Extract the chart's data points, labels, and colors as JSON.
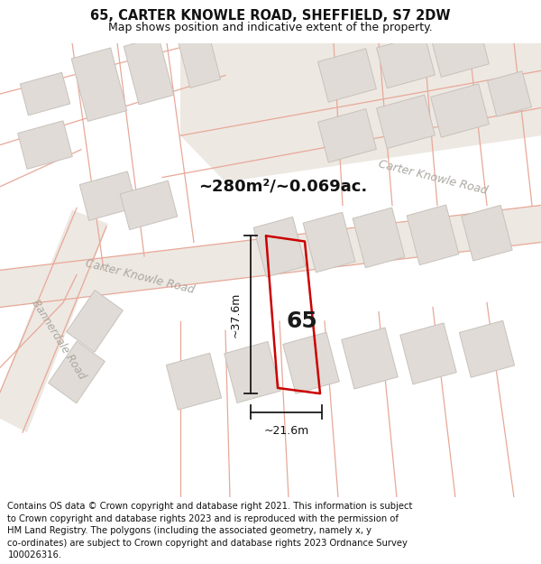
{
  "title": "65, CARTER KNOWLE ROAD, SHEFFIELD, S7 2DW",
  "subtitle": "Map shows position and indicative extent of the property.",
  "area_label": "~280m²/~0.069ac.",
  "width_label": "~21.6m",
  "height_label": "~37.6m",
  "plot_number": "65",
  "map_bg": "#f7f4f1",
  "road_fill": "#f0ece8",
  "road_line_color": "#e8a898",
  "building_color": "#e0dbd6",
  "building_edge_color": "#c8c2bc",
  "plot_line_color": "#cc0000",
  "dim_line_color": "#1a1a1a",
  "title_fontsize": 10.5,
  "subtitle_fontsize": 9,
  "footer_fontsize": 7.2,
  "road_label_color": "#aaa8a0",
  "footer_lines": [
    "Contains OS data © Crown copyright and database right 2021. This information is subject",
    "to Crown copyright and database rights 2023 and is reproduced with the permission of",
    "HM Land Registry. The polygons (including the associated geometry, namely x, y",
    "co-ordinates) are subject to Crown copyright and database rights 2023 Ordnance Survey",
    "100026316."
  ]
}
